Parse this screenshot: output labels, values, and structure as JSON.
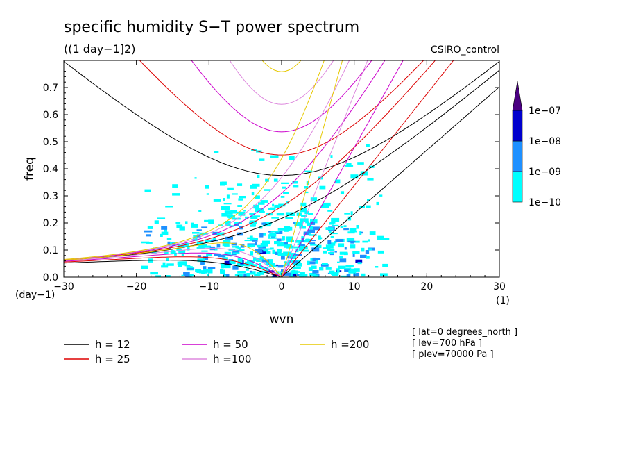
{
  "chart_data": {
    "type": "heatmap",
    "title": "specific humidity S−T power spectrum",
    "subtitle": "((1 day−1]2)",
    "model_label": "CSIRO_control",
    "xlabel": "wvn",
    "ylabel": "freq",
    "x_unit": "(1)",
    "y_unit": "(day−1)",
    "xlim": [
      -30,
      30
    ],
    "ylim": [
      0,
      0.8
    ],
    "x_ticks": [
      {
        "value": -30,
        "label": "−30"
      },
      {
        "value": -20,
        "label": "−20"
      },
      {
        "value": -10,
        "label": "−10"
      },
      {
        "value": 0,
        "label": "0"
      },
      {
        "value": 10,
        "label": "10"
      },
      {
        "value": 20,
        "label": "20"
      },
      {
        "value": 30,
        "label": "30"
      }
    ],
    "y_ticks": [
      {
        "value": 0.0,
        "label": "0.0"
      },
      {
        "value": 0.1,
        "label": "0.1"
      },
      {
        "value": 0.2,
        "label": "0.2"
      },
      {
        "value": 0.3,
        "label": "0.3"
      },
      {
        "value": 0.4,
        "label": "0.4"
      },
      {
        "value": 0.5,
        "label": "0.5"
      },
      {
        "value": 0.6,
        "label": "0.6"
      },
      {
        "value": 0.7,
        "label": "0.7"
      }
    ],
    "colorbar": {
      "levels": [
        {
          "label": "1e−10",
          "color": "#00ffff"
        },
        {
          "label": "1e−09",
          "color": "#1e90ff"
        },
        {
          "label": "1e−08",
          "color": "#0000cd"
        },
        {
          "label": "1e−07",
          "color": "#4b0082"
        }
      ]
    },
    "series": [
      {
        "name": "h = 12",
        "h": 12,
        "color": "#000000"
      },
      {
        "name": "h = 25",
        "h": 25,
        "color": "#dd0000"
      },
      {
        "name": "h = 50",
        "h": 50,
        "color": "#cc00cc"
      },
      {
        "name": "h =100",
        "h": 100,
        "color": "#dd88dd"
      },
      {
        "name": "h =200",
        "h": 200,
        "color": "#e6c800"
      }
    ],
    "annotations": [
      "[ lat=0 degrees_north ]",
      "[ lev=700 hPa ]",
      "[ plev=70000 Pa ]"
    ]
  }
}
